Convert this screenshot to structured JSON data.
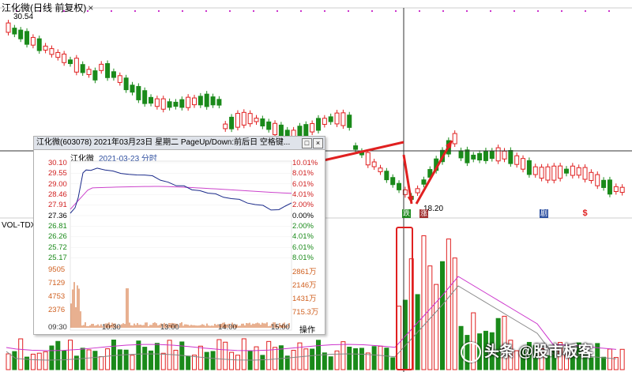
{
  "window": {
    "title": "江化微(日线 前复权)",
    "close_glyph": "×"
  },
  "main_chart": {
    "high_label": "30.54",
    "low_label": "18.20",
    "volume_label": "VOL-TDX",
    "badges": [
      "跌",
      "涨",
      "剧",
      "$"
    ]
  },
  "popup": {
    "title": "江化微(603078)  2021年03月23日 星期二  PageUp/Down:前后日  空格键...",
    "stock_name": "江化微",
    "date": "2021-03-23 分时",
    "min_btn": "□",
    "close_btn": "×",
    "price_levels_left": [
      "30.10",
      "29.55",
      "29.00",
      "28.46",
      "27.91",
      "27.36",
      "26.81",
      "26.26",
      "25.72",
      "25.17"
    ],
    "pct_levels_right": [
      "10.01%",
      "8.01%",
      "6.01%",
      "4.01%",
      "2.00%",
      "0.00%",
      "2.00%",
      "4.01%",
      "6.01%",
      "8.01%"
    ],
    "volume_left": [
      "9505",
      "7129",
      "4753",
      "2376"
    ],
    "volume_right": [
      "2861万",
      "2146万",
      "1431万",
      "715.3万"
    ],
    "time_ticks": [
      "09:30",
      "10:30",
      "13:00",
      "14:00",
      "15:00"
    ],
    "op_label": "操作"
  },
  "watermark": {
    "text": "头条 @股市板客"
  },
  "colors": {
    "up": "#e02020",
    "down": "#1a8a1a",
    "ma": "#cc33cc",
    "ma2": "#888888",
    "price_line": "#1a2a8a",
    "avg_line": "#cc44cc",
    "volume_bar": "#d06020",
    "crosshair": "#333333",
    "arrow": "#e02020"
  }
}
